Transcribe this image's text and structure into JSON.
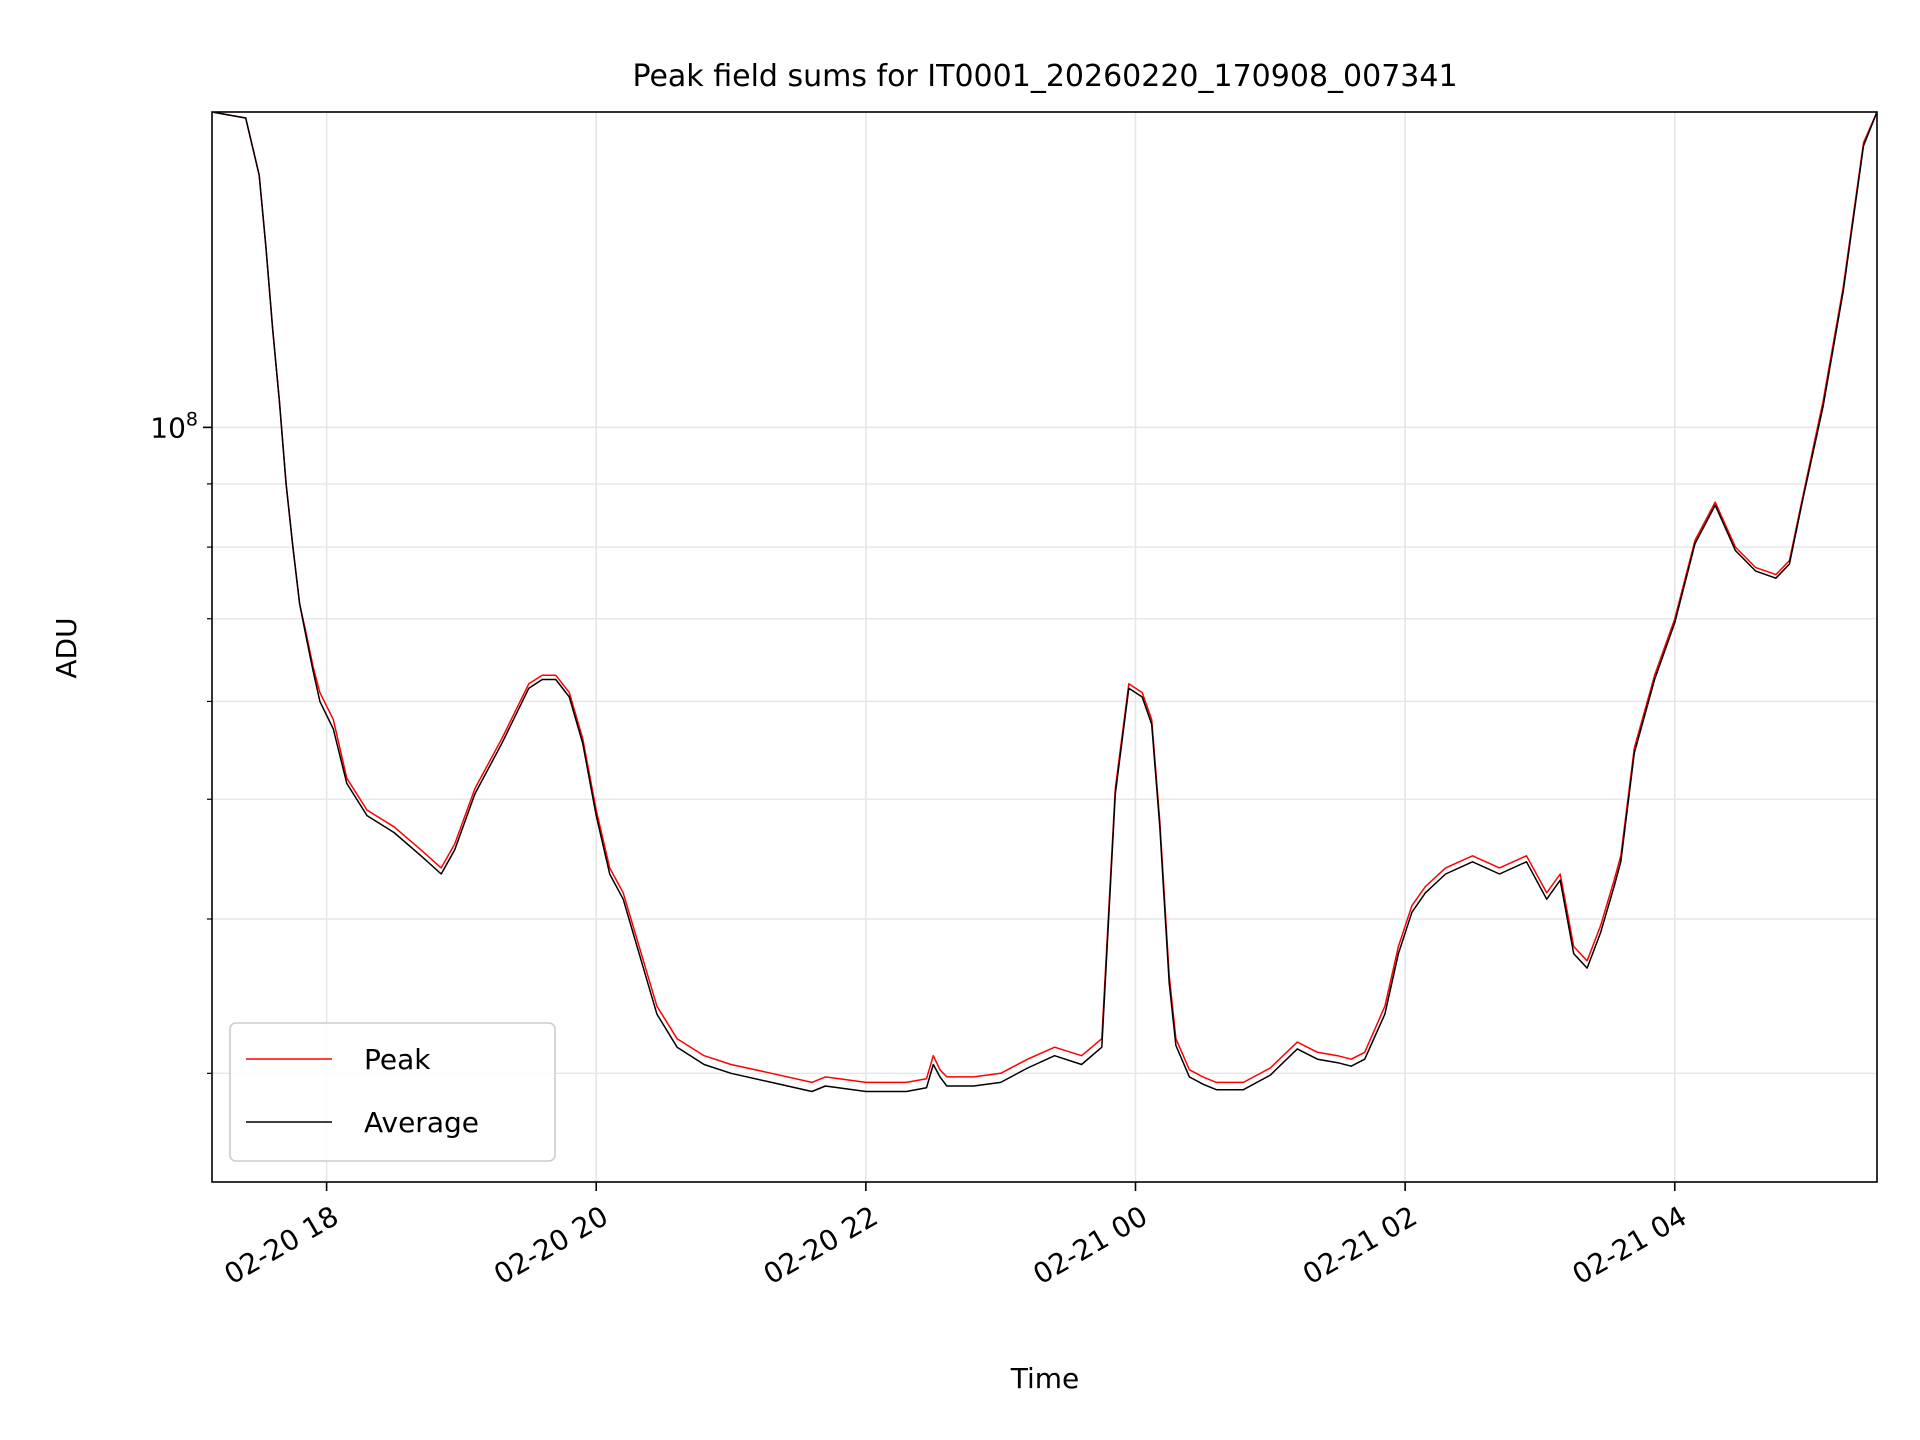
{
  "chart_data": {
    "type": "line",
    "title": "Peak field sums for IT0001_20260220_170908_007341",
    "xlabel": "Time",
    "ylabel": "ADU",
    "yscale": "log",
    "ylim": [
      24500000,
      180000000
    ],
    "xlim": [
      -0.85,
      11.5
    ],
    "grid": true,
    "x_unit": "hours since 02-20 18:00",
    "xticks": [
      {
        "value": 0,
        "label": "02-20 18"
      },
      {
        "value": 2,
        "label": "02-20 20"
      },
      {
        "value": 4,
        "label": "02-20 22"
      },
      {
        "value": 6,
        "label": "02-21 00"
      },
      {
        "value": 8,
        "label": "02-21 02"
      },
      {
        "value": 10,
        "label": "02-21 04"
      }
    ],
    "yticks": [
      {
        "value": 100000000,
        "base": "10",
        "exponent": "8"
      }
    ],
    "series": [
      {
        "name": "Peak",
        "color": "#ff0000",
        "x": [
          -0.85,
          -0.6,
          -0.5,
          -0.45,
          -0.4,
          -0.35,
          -0.3,
          -0.25,
          -0.2,
          -0.15,
          -0.1,
          -0.05,
          0.05,
          0.15,
          0.3,
          0.5,
          0.7,
          0.85,
          0.95,
          1.1,
          1.3,
          1.5,
          1.6,
          1.7,
          1.8,
          1.9,
          2.0,
          2.1,
          2.2,
          2.35,
          2.45,
          2.6,
          2.8,
          3.0,
          3.3,
          3.6,
          3.7,
          4.0,
          4.3,
          4.45,
          4.5,
          4.55,
          4.6,
          4.8,
          5.0,
          5.2,
          5.4,
          5.6,
          5.75,
          5.85,
          5.95,
          6.05,
          6.12,
          6.18,
          6.25,
          6.3,
          6.4,
          6.45,
          6.5,
          6.6,
          6.8,
          7.0,
          7.2,
          7.35,
          7.5,
          7.6,
          7.7,
          7.85,
          7.95,
          8.05,
          8.15,
          8.3,
          8.5,
          8.7,
          8.9,
          9.05,
          9.15,
          9.25,
          9.35,
          9.45,
          9.55,
          9.6,
          9.7,
          9.85,
          10.0,
          10.15,
          10.3,
          10.45,
          10.6,
          10.75,
          10.85,
          10.95,
          11.1,
          11.25,
          11.4,
          11.5
        ],
        "y": [
          180000000,
          178000000,
          160000000,
          140000000,
          120000000,
          105000000,
          90000000,
          80000000,
          72000000,
          68000000,
          64000000,
          61000000,
          58000000,
          52000000,
          49000000,
          47500000,
          45500000,
          44000000,
          46000000,
          51000000,
          56000000,
          62000000,
          63000000,
          63000000,
          61000000,
          56000000,
          49000000,
          44000000,
          42000000,
          37000000,
          34000000,
          32000000,
          31000000,
          30500000,
          30000000,
          29500000,
          29800000,
          29500000,
          29500000,
          29700000,
          31000000,
          30200000,
          29800000,
          29800000,
          30000000,
          30800000,
          31500000,
          31000000,
          32000000,
          51000000,
          62000000,
          61000000,
          58000000,
          48000000,
          36000000,
          32000000,
          30200000,
          30000000,
          29800000,
          29500000,
          29500000,
          30300000,
          31800000,
          31200000,
          31000000,
          30800000,
          31200000,
          34000000,
          38000000,
          41000000,
          42500000,
          44000000,
          45000000,
          44000000,
          45000000,
          42000000,
          43500000,
          38000000,
          37000000,
          39500000,
          43000000,
          45000000,
          55000000,
          63000000,
          70000000,
          81000000,
          87000000,
          80000000,
          77000000,
          76000000,
          78000000,
          88000000,
          105000000,
          130000000,
          170000000,
          180000000
        ]
      },
      {
        "name": "Average",
        "color": "#000000",
        "x": [
          -0.85,
          -0.6,
          -0.5,
          -0.45,
          -0.4,
          -0.35,
          -0.3,
          -0.25,
          -0.2,
          -0.15,
          -0.1,
          -0.05,
          0.05,
          0.15,
          0.3,
          0.5,
          0.7,
          0.85,
          0.95,
          1.1,
          1.3,
          1.5,
          1.6,
          1.7,
          1.8,
          1.9,
          2.0,
          2.1,
          2.2,
          2.35,
          2.45,
          2.6,
          2.8,
          3.0,
          3.3,
          3.6,
          3.7,
          4.0,
          4.3,
          4.45,
          4.5,
          4.55,
          4.6,
          4.8,
          5.0,
          5.2,
          5.4,
          5.6,
          5.75,
          5.85,
          5.95,
          6.05,
          6.12,
          6.18,
          6.25,
          6.3,
          6.4,
          6.45,
          6.5,
          6.6,
          6.8,
          7.0,
          7.2,
          7.35,
          7.5,
          7.6,
          7.7,
          7.85,
          7.95,
          8.05,
          8.15,
          8.3,
          8.5,
          8.7,
          8.9,
          9.05,
          9.15,
          9.25,
          9.35,
          9.45,
          9.55,
          9.6,
          9.7,
          9.85,
          10.0,
          10.15,
          10.3,
          10.45,
          10.6,
          10.75,
          10.85,
          10.95,
          11.1,
          11.25,
          11.4,
          11.5
        ],
        "y": [
          180000000,
          178000000,
          160000000,
          140000000,
          120000000,
          105000000,
          90000000,
          80000000,
          72000000,
          67500000,
          63500000,
          60000000,
          57000000,
          51500000,
          48500000,
          47000000,
          45000000,
          43500000,
          45500000,
          50500000,
          55500000,
          61500000,
          62500000,
          62500000,
          60500000,
          55500000,
          48500000,
          43500000,
          41500000,
          36500000,
          33500000,
          31500000,
          30500000,
          30000000,
          29500000,
          29000000,
          29300000,
          29000000,
          29000000,
          29200000,
          30500000,
          29800000,
          29300000,
          29300000,
          29500000,
          30300000,
          31000000,
          30500000,
          31500000,
          50500000,
          61500000,
          60500000,
          57500000,
          47500000,
          35500000,
          31600000,
          29800000,
          29600000,
          29400000,
          29100000,
          29100000,
          29900000,
          31400000,
          30800000,
          30600000,
          30400000,
          30800000,
          33500000,
          37500000,
          40500000,
          42000000,
          43500000,
          44500000,
          43500000,
          44500000,
          41500000,
          43000000,
          37500000,
          36500000,
          39000000,
          42500000,
          44500000,
          54500000,
          62500000,
          69500000,
          80500000,
          86500000,
          79500000,
          76500000,
          75500000,
          77500000,
          87500000,
          104000000,
          129000000,
          169000000,
          180000000
        ]
      }
    ],
    "legend": {
      "placement": "lower-left",
      "entries": [
        {
          "label": "Peak",
          "color": "#ff0000"
        },
        {
          "label": "Average",
          "color": "#000000"
        }
      ]
    }
  }
}
